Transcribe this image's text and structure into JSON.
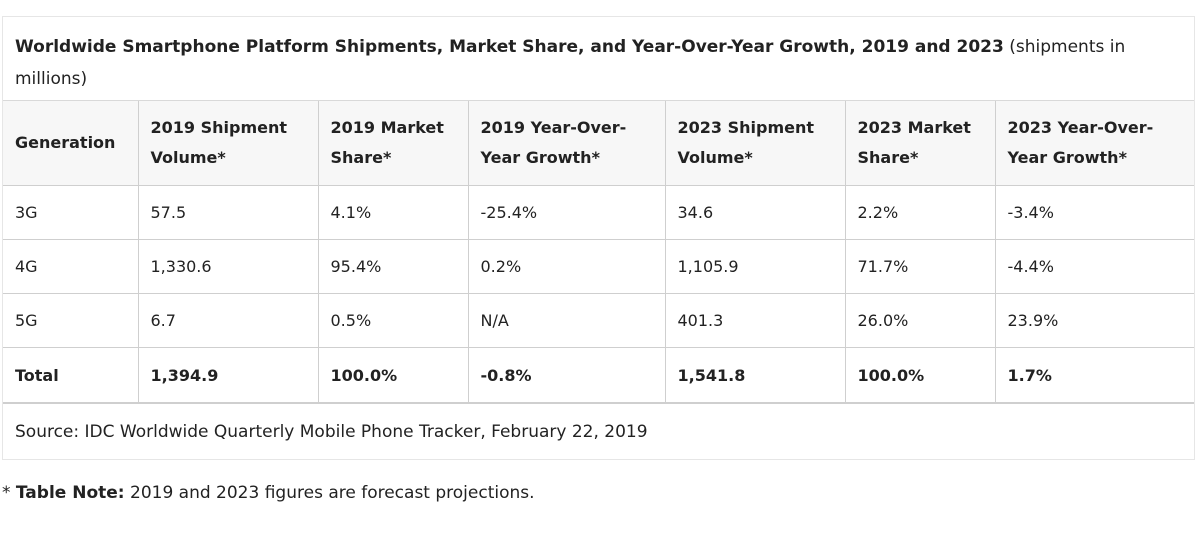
{
  "caption": {
    "bold": "Worldwide Smartphone Platform Shipments, Market Share, and Year-Over-Year Growth, 2019 and 2023",
    "rest": " (shipments in millions)"
  },
  "table": {
    "headers": [
      "Generation",
      "2019 Shipment Volume*",
      "2019 Market Share*",
      "2019 Year-Over-Year Growth*",
      "2023 Shipment Volume*",
      "2023 Market Share*",
      "2023 Year-Over-Year Growth*"
    ],
    "rows": [
      [
        "3G",
        "57.5",
        "4.1%",
        "-25.4%",
        "34.6",
        "2.2%",
        "-3.4%"
      ],
      [
        "4G",
        "1,330.6",
        "95.4%",
        "0.2%",
        "1,105.9",
        "71.7%",
        "-4.4%"
      ],
      [
        "5G",
        "6.7",
        "0.5%",
        "N/A",
        "401.3",
        "26.0%",
        "23.9%"
      ],
      [
        "Total",
        "1,394.9",
        "100.0%",
        "-0.8%",
        "1,541.8",
        "100.0%",
        "1.7%"
      ]
    ]
  },
  "source": "Source: IDC Worldwide Quarterly Mobile Phone Tracker, February 22, 2019",
  "note": {
    "prefix": "* ",
    "label": "Table Note:",
    "text": " 2019 and 2023 figures are forecast projections."
  }
}
